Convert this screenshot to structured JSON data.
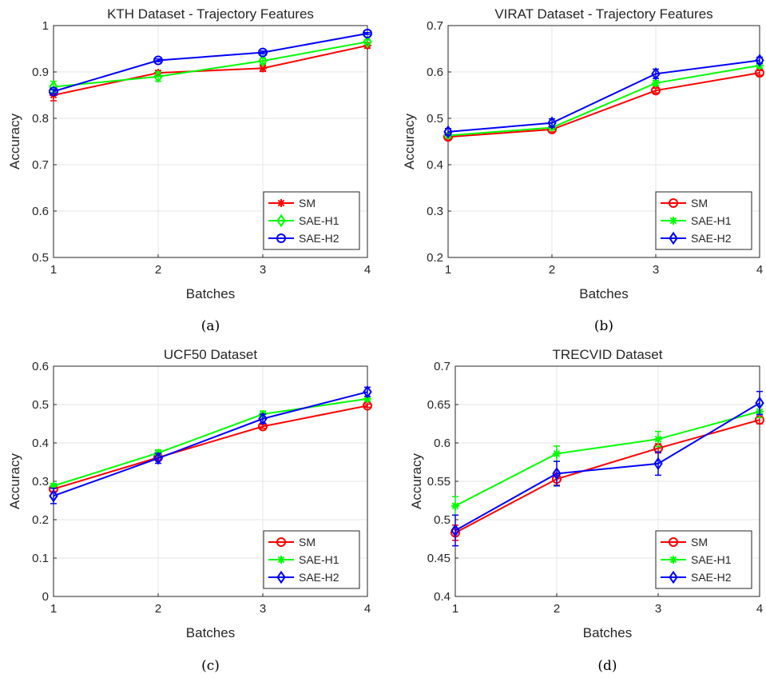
{
  "chart_data": [
    {
      "type": "line",
      "title": "KTH Dataset - Trajectory Features",
      "caption": "(a)",
      "xlabel": "Batches",
      "ylabel": "Accuracy",
      "x": [
        1,
        2,
        3,
        4
      ],
      "xticks": [
        "1",
        "2",
        "3",
        "4"
      ],
      "yticks": [
        "0.5",
        "0.6",
        "0.7",
        "0.8",
        "0.9",
        "1"
      ],
      "xlim": [
        1,
        4
      ],
      "ylim": [
        0.5,
        1.0
      ],
      "grid": true,
      "legend_position": "bottom-right",
      "series": [
        {
          "name": "SM",
          "color": "#ff0000",
          "marker": "star",
          "values": [
            0.85,
            0.898,
            0.908,
            0.957
          ],
          "err": [
            0.012,
            0.005,
            0.007,
            0.006
          ]
        },
        {
          "name": "SAE-H1",
          "color": "#00ff00",
          "marker": "diamond",
          "values": [
            0.868,
            0.89,
            0.924,
            0.965
          ],
          "err": [
            0.012,
            0.01,
            0.006,
            0.004
          ]
        },
        {
          "name": "SAE-H2",
          "color": "#0000ff",
          "marker": "circle",
          "values": [
            0.858,
            0.925,
            0.942,
            0.983
          ],
          "err": [
            0.004,
            0.003,
            0.003,
            0.002
          ]
        }
      ]
    },
    {
      "type": "line",
      "title": "VIRAT Dataset - Trajectory Features",
      "caption": "(b)",
      "xlabel": "Batches",
      "ylabel": "Accuracy",
      "x": [
        1,
        2,
        3,
        4
      ],
      "xticks": [
        "1",
        "2",
        "3",
        "4"
      ],
      "yticks": [
        "0.2",
        "0.3",
        "0.4",
        "0.5",
        "0.6",
        "0.7"
      ],
      "xlim": [
        1,
        4
      ],
      "ylim": [
        0.2,
        0.7
      ],
      "grid": true,
      "legend_position": "bottom-right",
      "series": [
        {
          "name": "SM",
          "color": "#ff0000",
          "marker": "circle",
          "values": [
            0.46,
            0.476,
            0.56,
            0.598
          ],
          "err": [
            0.005,
            0.005,
            0.005,
            0.005
          ]
        },
        {
          "name": "SAE-H1",
          "color": "#00ff00",
          "marker": "star",
          "values": [
            0.463,
            0.48,
            0.576,
            0.614
          ],
          "err": [
            0.005,
            0.005,
            0.006,
            0.006
          ]
        },
        {
          "name": "SAE-H2",
          "color": "#0000ff",
          "marker": "diamond",
          "values": [
            0.471,
            0.49,
            0.596,
            0.625
          ],
          "err": [
            0.007,
            0.009,
            0.01,
            0.007
          ]
        }
      ]
    },
    {
      "type": "line",
      "title": "UCF50 Dataset",
      "caption": "(c)",
      "xlabel": "Batches",
      "ylabel": "Accuracy",
      "x": [
        1,
        2,
        3,
        4
      ],
      "xticks": [
        "1",
        "2",
        "3",
        "4"
      ],
      "yticks": [
        "0",
        "0.1",
        "0.2",
        "0.3",
        "0.4",
        "0.5",
        "0.6"
      ],
      "xlim": [
        1,
        4
      ],
      "ylim": [
        0,
        0.6
      ],
      "grid": true,
      "legend_position": "bottom-right",
      "series": [
        {
          "name": "SM",
          "color": "#ff0000",
          "marker": "circle",
          "values": [
            0.28,
            0.362,
            0.443,
            0.497
          ],
          "err": [
            0.006,
            0.006,
            0.005,
            0.004
          ]
        },
        {
          "name": "SAE-H1",
          "color": "#00ff00",
          "marker": "star",
          "values": [
            0.288,
            0.374,
            0.475,
            0.515
          ],
          "err": [
            0.006,
            0.008,
            0.008,
            0.006
          ]
        },
        {
          "name": "SAE-H2",
          "color": "#0000ff",
          "marker": "diamond",
          "values": [
            0.262,
            0.36,
            0.463,
            0.533
          ],
          "err": [
            0.02,
            0.013,
            0.012,
            0.012
          ]
        }
      ]
    },
    {
      "type": "line",
      "title": "TRECVID Dataset",
      "caption": "(d)",
      "xlabel": "Batches",
      "ylabel": "Accuracy",
      "x": [
        1,
        2,
        3,
        4
      ],
      "xticks": [
        "1",
        "2",
        "3",
        "4"
      ],
      "yticks": [
        "0.4",
        "0.45",
        "0.5",
        "0.55",
        "0.6",
        "0.65",
        "0.7"
      ],
      "xlim": [
        1,
        4
      ],
      "ylim": [
        0.4,
        0.7
      ],
      "grid": true,
      "legend_position": "bottom-right",
      "series": [
        {
          "name": "SM",
          "color": "#ff0000",
          "marker": "circle",
          "values": [
            0.483,
            0.553,
            0.593,
            0.63
          ],
          "err": [
            0.01,
            0.008,
            0.006,
            0.005
          ]
        },
        {
          "name": "SAE-H1",
          "color": "#00ff00",
          "marker": "star",
          "values": [
            0.518,
            0.586,
            0.605,
            0.641
          ],
          "err": [
            0.012,
            0.01,
            0.01,
            0.008
          ]
        },
        {
          "name": "SAE-H2",
          "color": "#0000ff",
          "marker": "diamond",
          "values": [
            0.486,
            0.56,
            0.573,
            0.652
          ],
          "err": [
            0.02,
            0.016,
            0.015,
            0.015
          ]
        }
      ]
    }
  ]
}
